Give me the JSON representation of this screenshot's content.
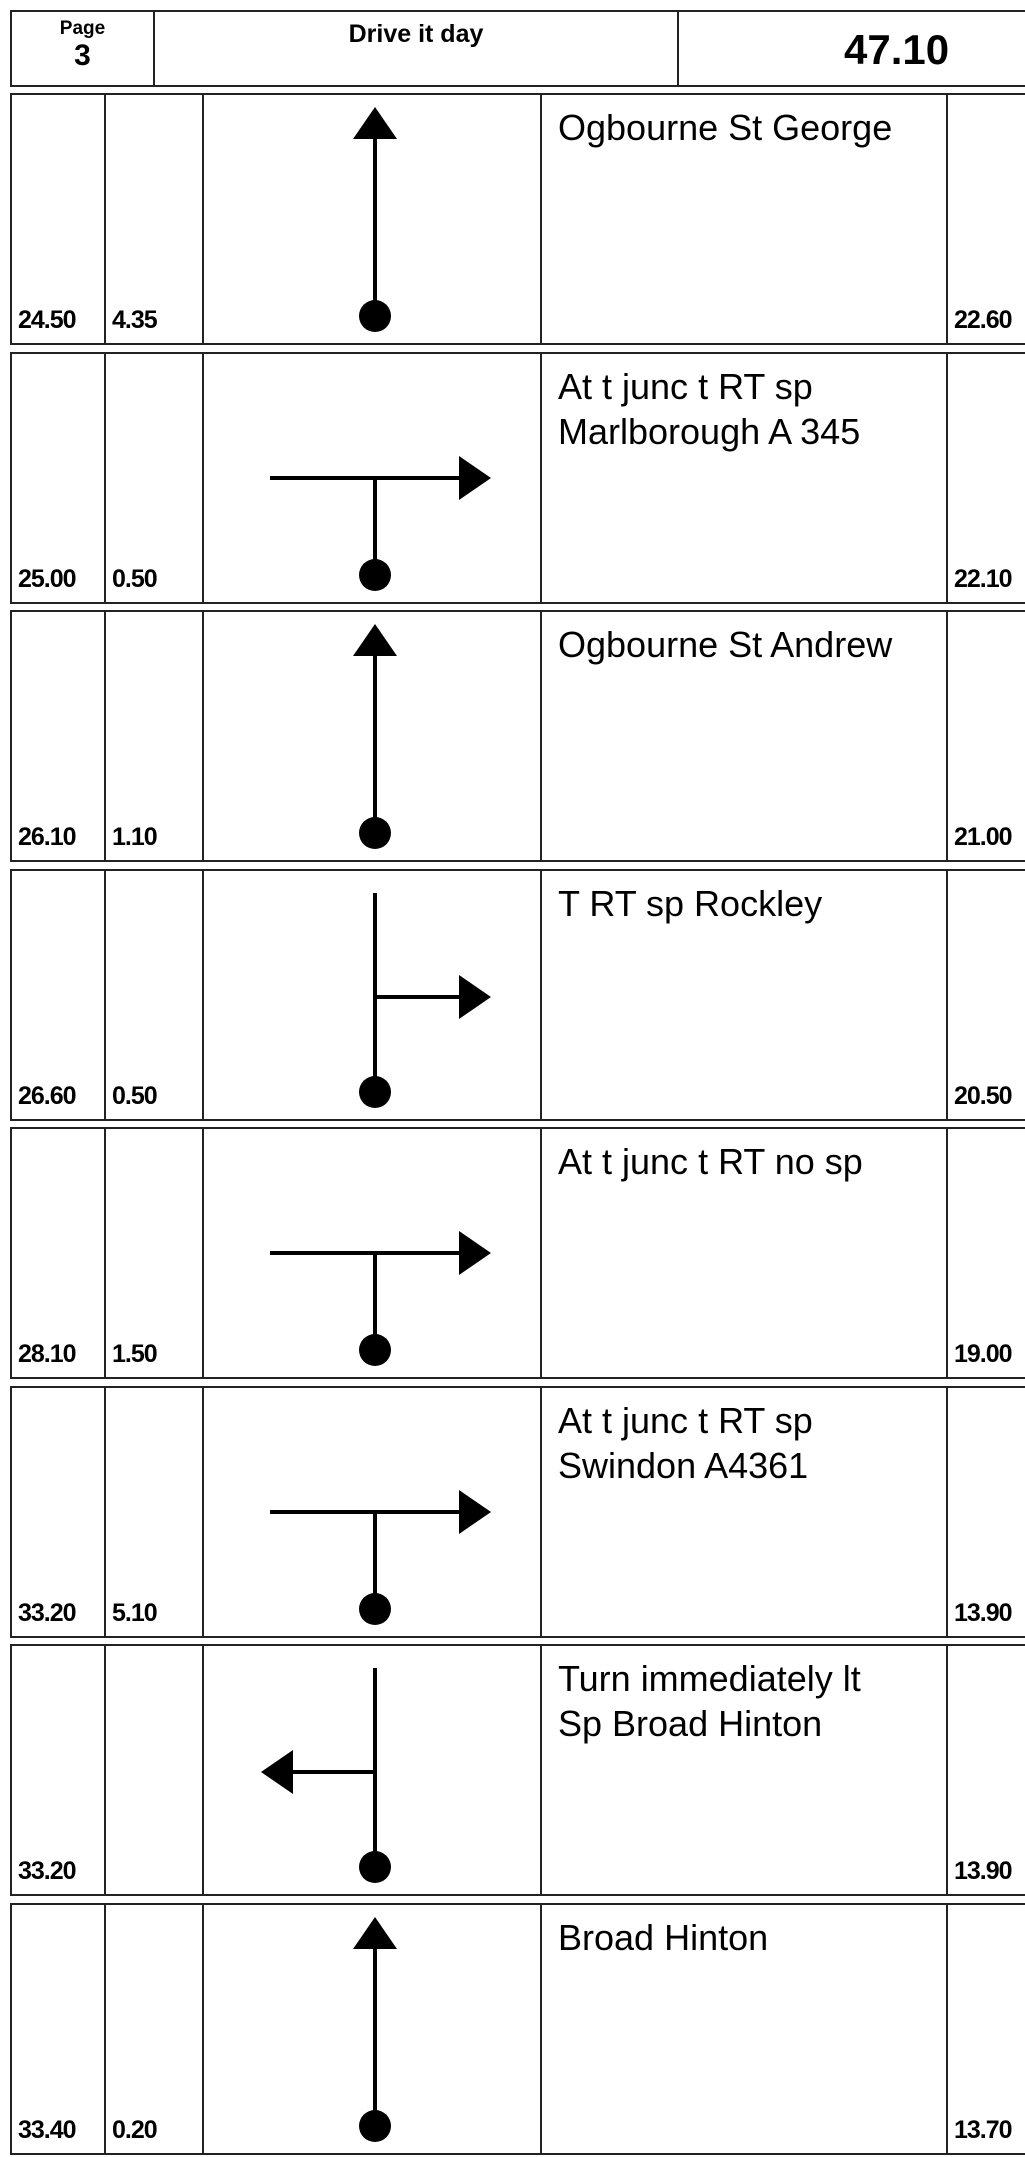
{
  "header": {
    "page_label": "Page",
    "page": "3",
    "title": "Drive it day",
    "total": "47.10"
  },
  "rows": [
    {
      "total": "24.50",
      "interval": "4.35",
      "instruction": [
        "Ogbourne St George"
      ],
      "remaining": "22.60"
    },
    {
      "total": "25.00",
      "interval": "0.50",
      "instruction": [
        "At t junc t RT sp",
        "Marlborough A 345"
      ],
      "remaining": "22.10"
    },
    {
      "total": "26.10",
      "interval": "1.10",
      "instruction": [
        "Ogbourne St Andrew"
      ],
      "remaining": "21.00"
    },
    {
      "total": "26.60",
      "interval": "0.50",
      "instruction": [
        "T RT sp Rockley"
      ],
      "remaining": "20.50"
    },
    {
      "total": "28.10",
      "interval": "1.50",
      "instruction": [
        "At t junc t RT no sp"
      ],
      "remaining": "19.00"
    },
    {
      "total": "33.20",
      "interval": "5.10",
      "instruction": [
        "At t junc t RT sp",
        "Swindon A4361"
      ],
      "remaining": "13.90"
    },
    {
      "total": "33.20",
      "instruction": [
        "Turn immediately lt",
        "Sp Broad Hinton"
      ],
      "remaining": "13.90"
    },
    {
      "total": "33.40",
      "interval": "0.20",
      "instruction": [
        "Broad Hinton"
      ],
      "remaining": "13.70"
    }
  ]
}
